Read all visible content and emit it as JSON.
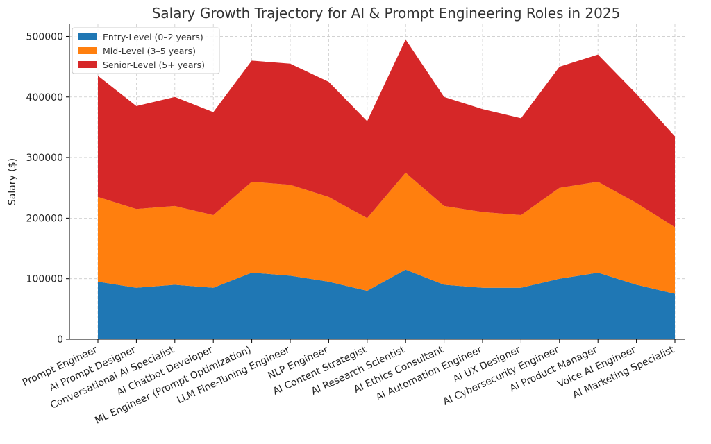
{
  "chart_data": {
    "type": "area",
    "stacked": true,
    "title": "Salary Growth Trajectory for AI & Prompt Engineering Roles in 2025",
    "xlabel": "",
    "ylabel": "Salary ($)",
    "ylim": [
      0,
      520000
    ],
    "yticks": [
      0,
      100000,
      200000,
      300000,
      400000,
      500000
    ],
    "grid": true,
    "legend_position": "top-left",
    "categories": [
      "Prompt Engineer",
      "AI Prompt Designer",
      "Conversational AI Specialist",
      "AI Chatbot Developer",
      "ML Engineer (Prompt Optimization)",
      "LLM Fine-Tuning Engineer",
      "NLP Engineer",
      "AI Content Strategist",
      "AI Research Scientist",
      "AI Ethics Consultant",
      "AI Automation Engineer",
      "AI UX Designer",
      "AI Cybersecurity Engineer",
      "AI Product Manager",
      "Voice AI Engineer",
      "AI Marketing Specialist"
    ],
    "series": [
      {
        "name": "Entry-Level (0–2 years)",
        "color": "#1f77b4",
        "values": [
          95000,
          85000,
          90000,
          85000,
          110000,
          105000,
          95000,
          80000,
          115000,
          90000,
          85000,
          85000,
          100000,
          110000,
          90000,
          75000
        ]
      },
      {
        "name": "Mid-Level (3–5 years)",
        "color": "#ff7f0e",
        "values": [
          140000,
          130000,
          130000,
          120000,
          150000,
          150000,
          140000,
          120000,
          160000,
          130000,
          125000,
          120000,
          150000,
          150000,
          135000,
          110000
        ]
      },
      {
        "name": "Senior-Level (5+ years)",
        "color": "#d62728",
        "values": [
          200000,
          170000,
          180000,
          170000,
          200000,
          200000,
          190000,
          160000,
          220000,
          180000,
          170000,
          160000,
          200000,
          210000,
          180000,
          150000
        ]
      }
    ]
  }
}
